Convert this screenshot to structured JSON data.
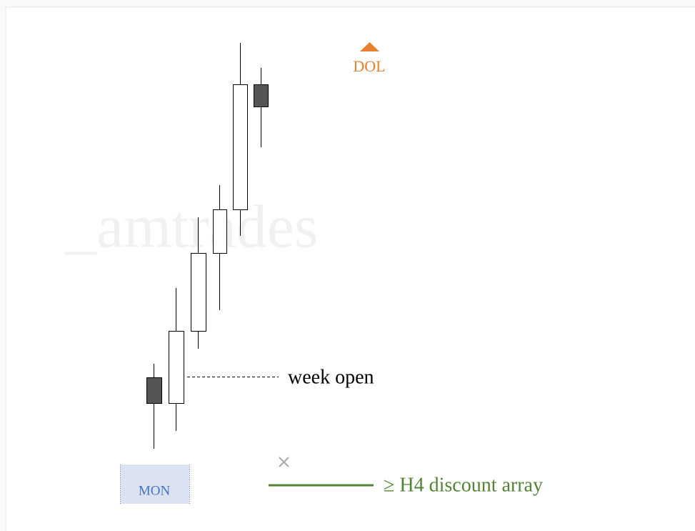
{
  "watermark": "_amtrades",
  "target": {
    "label": "DOL"
  },
  "week_open": {
    "label": "week open"
  },
  "session": {
    "label": "MON"
  },
  "legend": {
    "label": "≥ H4 discount array"
  }
}
